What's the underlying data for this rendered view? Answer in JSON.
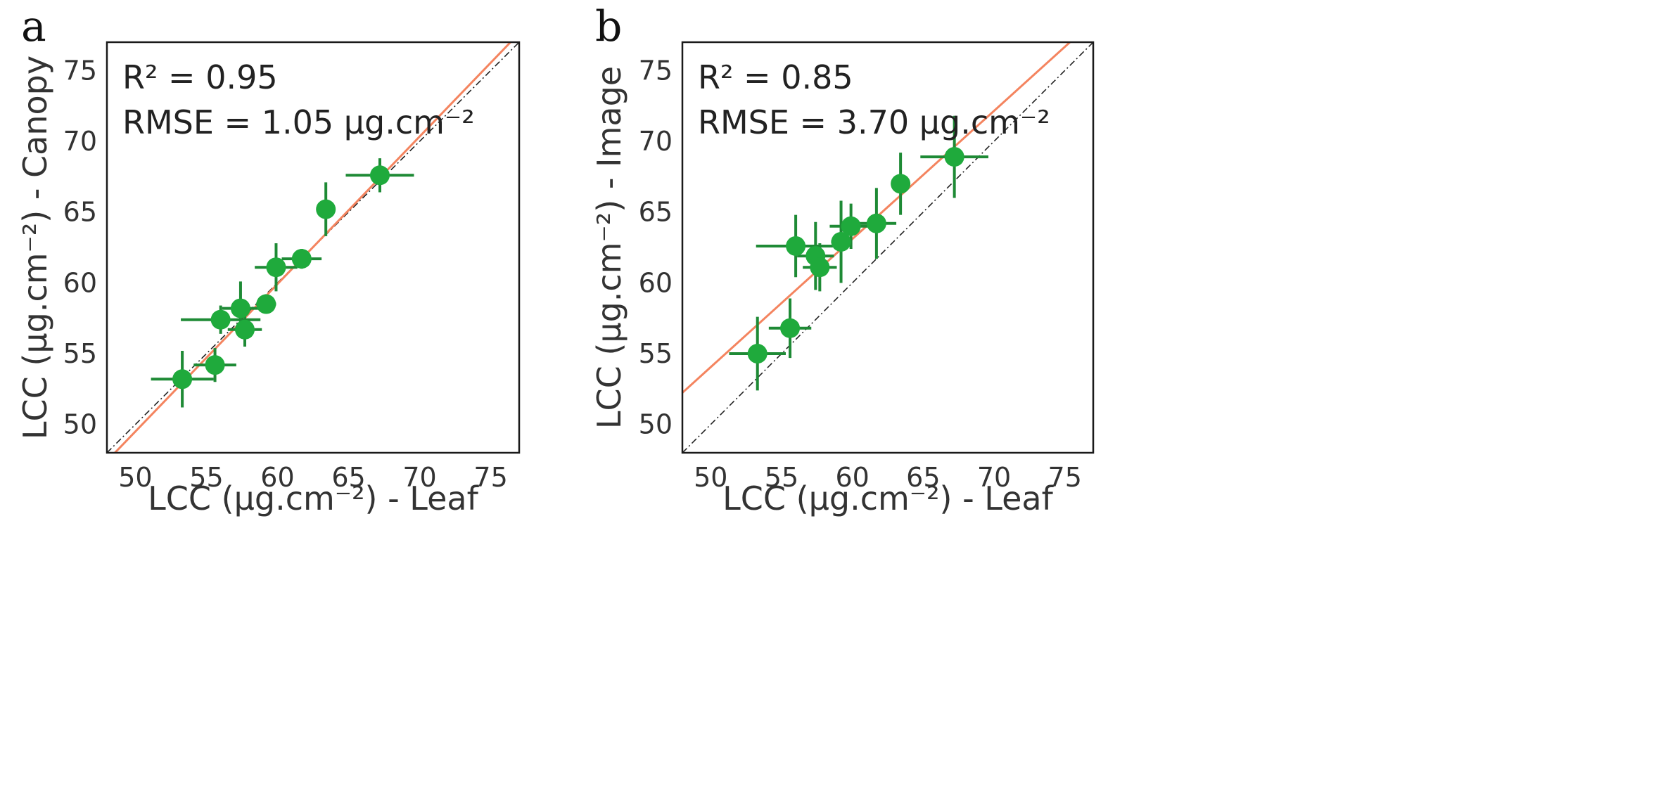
{
  "chart_data": [
    {
      "type": "scatter",
      "panel_label": "a",
      "xlabel": "LCC (µg.cm⁻²) - Leaf",
      "ylabel": "LCC (µg.cm⁻²) - Canopy",
      "xlim": [
        48,
        77
      ],
      "ylim": [
        48,
        77
      ],
      "xticks": [
        50,
        55,
        60,
        65,
        70,
        75
      ],
      "yticks": [
        50,
        55,
        60,
        65,
        70,
        75
      ],
      "annotation_r2": "R² = 0.95",
      "annotation_rmse": "RMSE = 1.05 µg.cm⁻²",
      "fit_line": {
        "slope": 1.042,
        "intercept": -2.6,
        "color": "#f4845f"
      },
      "one_to_one_line": {
        "color": "#222222",
        "style": "dash-dot"
      },
      "points": [
        {
          "x": 53.3,
          "y": 53.2,
          "xerr": 2.2,
          "yerr": 2.0
        },
        {
          "x": 55.6,
          "y": 54.2,
          "xerr": 1.5,
          "yerr": 1.2
        },
        {
          "x": 56.0,
          "y": 57.4,
          "xerr": 2.8,
          "yerr": 1.0
        },
        {
          "x": 57.4,
          "y": 58.2,
          "xerr": 1.3,
          "yerr": 1.9
        },
        {
          "x": 57.7,
          "y": 56.7,
          "xerr": 1.2,
          "yerr": 1.2
        },
        {
          "x": 59.2,
          "y": 58.5,
          "xerr": 0.7,
          "yerr": 0.6
        },
        {
          "x": 59.9,
          "y": 61.1,
          "xerr": 1.5,
          "yerr": 1.7
        },
        {
          "x": 61.7,
          "y": 61.7,
          "xerr": 1.4,
          "yerr": 0.7
        },
        {
          "x": 63.4,
          "y": 65.2,
          "xerr": 0.6,
          "yerr": 1.9
        },
        {
          "x": 67.2,
          "y": 67.6,
          "xerr": 2.4,
          "yerr": 1.2
        }
      ],
      "point_color": "#1faa3c",
      "errorbar_color": "#1e8a35"
    },
    {
      "type": "scatter",
      "panel_label": "b",
      "xlabel": "LCC (µg.cm⁻²) - Leaf",
      "ylabel": "LCC (µg.cm⁻²) - Image",
      "xlim": [
        48,
        77
      ],
      "ylim": [
        48,
        77
      ],
      "xticks": [
        50,
        55,
        60,
        65,
        70,
        75
      ],
      "yticks": [
        50,
        55,
        60,
        65,
        70,
        75
      ],
      "annotation_r2": "R² = 0.85",
      "annotation_rmse": "RMSE = 3.70 µg.cm⁻²",
      "fit_line": {
        "slope": 0.905,
        "intercept": 8.8,
        "color": "#f4845f"
      },
      "one_to_one_line": {
        "color": "#222222",
        "style": "dash-dot"
      },
      "points": [
        {
          "x": 53.3,
          "y": 55.0,
          "xerr": 2.0,
          "yerr": 2.6
        },
        {
          "x": 55.6,
          "y": 56.8,
          "xerr": 1.5,
          "yerr": 2.1
        },
        {
          "x": 56.0,
          "y": 62.6,
          "xerr": 2.8,
          "yerr": 2.2
        },
        {
          "x": 57.4,
          "y": 61.9,
          "xerr": 1.3,
          "yerr": 2.4
        },
        {
          "x": 57.7,
          "y": 61.1,
          "xerr": 1.2,
          "yerr": 1.7
        },
        {
          "x": 59.2,
          "y": 62.9,
          "xerr": 0.7,
          "yerr": 2.9
        },
        {
          "x": 59.9,
          "y": 64.0,
          "xerr": 1.5,
          "yerr": 1.6
        },
        {
          "x": 61.7,
          "y": 64.2,
          "xerr": 1.4,
          "yerr": 2.5
        },
        {
          "x": 63.4,
          "y": 67.0,
          "xerr": 0.6,
          "yerr": 2.2
        },
        {
          "x": 67.2,
          "y": 68.9,
          "xerr": 2.4,
          "yerr": 2.9
        }
      ],
      "point_color": "#1faa3c",
      "errorbar_color": "#1e8a35"
    }
  ]
}
